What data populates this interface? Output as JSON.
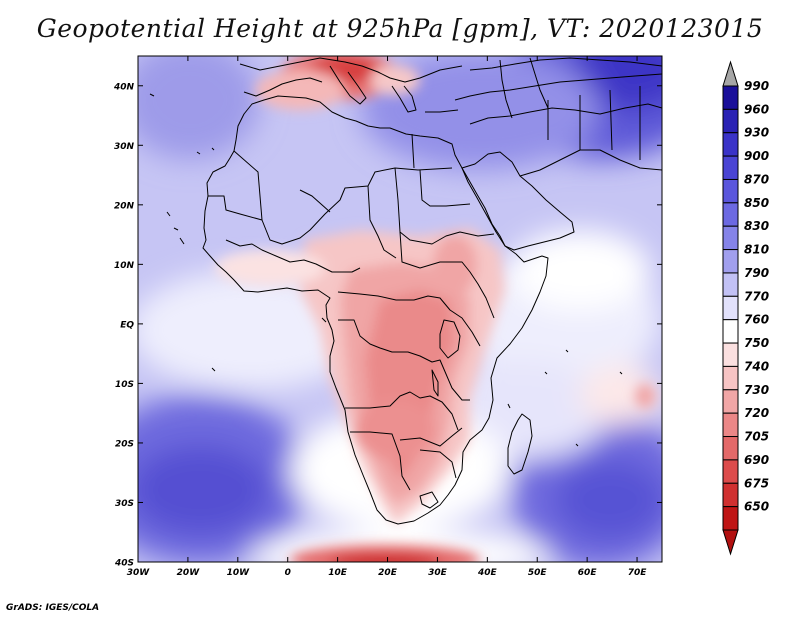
{
  "map": {
    "title": "Geopotential Height at 925hPa [gpm], VT: 2020123015",
    "credit": "GrADS: IGES/COLA",
    "lat_ticks": [
      "40N",
      "30N",
      "20N",
      "10N",
      "EQ",
      "10S",
      "20S",
      "30S",
      "40S"
    ],
    "lon_ticks": [
      "30W",
      "20W",
      "10W",
      "0",
      "10E",
      "20E",
      "30E",
      "40E",
      "50E",
      "60E",
      "70E"
    ],
    "extent": {
      "lon_min": -30,
      "lon_max": 75,
      "lat_min": -40,
      "lat_max": 45
    }
  },
  "colorbar": {
    "levels": [
      "990",
      "960",
      "930",
      "900",
      "870",
      "850",
      "830",
      "810",
      "790",
      "770",
      "760",
      "750",
      "740",
      "730",
      "720",
      "705",
      "690",
      "675",
      "650"
    ],
    "colors": [
      "#1a0f9a",
      "#2a22b4",
      "#3a33c8",
      "#4a44d4",
      "#5a56dc",
      "#6c69e2",
      "#8583e8",
      "#a19fee",
      "#c2c1f5",
      "#e2e1fb",
      "#ffffff",
      "#fbe0e0",
      "#f7c4c4",
      "#f1a6a6",
      "#eb8787",
      "#e46969",
      "#dc4b4b",
      "#d03030",
      "#bf1515"
    ],
    "top_arrow_color": "#a6a6a6",
    "bottom_arrow_color": "#b21010"
  },
  "colors": {
    "land_outline": "#000000",
    "frame": "#000000"
  }
}
